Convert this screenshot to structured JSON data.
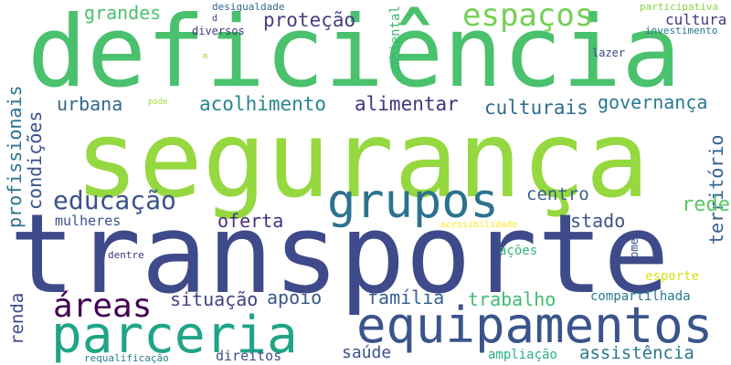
{
  "words": [
    {
      "text": "segurança",
      "color": "#95d840"
    },
    {
      "text": "transporte",
      "color": "#3e4a89"
    },
    {
      "text": "deficiência",
      "color": "#4ac16d"
    },
    {
      "text": "equipamentos",
      "color": "#3a548c"
    },
    {
      "text": "parceria",
      "color": "#20a486"
    },
    {
      "text": "grupos",
      "color": "#2c728e"
    },
    {
      "text": "espaços",
      "color": "#74d055"
    },
    {
      "text": "áreas",
      "color": "#440154"
    },
    {
      "text": "educação",
      "color": "#3b528b"
    },
    {
      "text": "acolhimento",
      "color": "#25858e"
    },
    {
      "text": "proteção",
      "color": "#433e85"
    },
    {
      "text": "alimentar",
      "color": "#46337e"
    },
    {
      "text": "culturais",
      "color": "#2e6e8e"
    },
    {
      "text": "governança",
      "color": "#2a788e"
    },
    {
      "text": "urbana",
      "color": "#31688e"
    },
    {
      "text": "grandes",
      "color": "#4ac16d"
    },
    {
      "text": "profissionais",
      "color": "#2c738e"
    },
    {
      "text": "condições",
      "color": "#3b528b"
    },
    {
      "text": "território",
      "color": "#34618d"
    },
    {
      "text": "oferta",
      "color": "#46327e"
    },
    {
      "text": "centro",
      "color": "#34618d"
    },
    {
      "text": "rede",
      "color": "#5cc863"
    },
    {
      "text": "estado",
      "color": "#3b528b"
    },
    {
      "text": "situação",
      "color": "#424086"
    },
    {
      "text": "apoio",
      "color": "#38588c"
    },
    {
      "text": "família",
      "color": "#355f8d"
    },
    {
      "text": "trabalho",
      "color": "#3fbc73"
    },
    {
      "text": "renda",
      "color": "#3e4989"
    },
    {
      "text": "mulheres",
      "color": "#3b528b"
    },
    {
      "text": "saúde",
      "color": "#3b528b"
    },
    {
      "text": "assistência",
      "color": "#2a788e"
    },
    {
      "text": "compartilhada",
      "color": "#29798e"
    },
    {
      "text": "cultura",
      "color": "#453781"
    },
    {
      "text": "diversos",
      "color": "#453781"
    },
    {
      "text": "ambiental",
      "color": "#3aba76"
    },
    {
      "text": "desigualdade",
      "color": "#31688e"
    },
    {
      "text": "participativa",
      "color": "#86d549"
    },
    {
      "text": "investimento",
      "color": "#29798e"
    },
    {
      "text": "lazer",
      "color": "#414487"
    },
    {
      "text": "d",
      "color": "#46337e"
    },
    {
      "text": "m",
      "color": "#9fda3a"
    },
    {
      "text": "pode",
      "color": "#9fda3a"
    },
    {
      "text": "acessibilidade",
      "color": "#fde725"
    },
    {
      "text": "ações",
      "color": "#32b67a"
    },
    {
      "text": "fome",
      "color": "#3b528b"
    },
    {
      "text": "esporte",
      "color": "#d8e219"
    },
    {
      "text": "dentre",
      "color": "#472f7d"
    },
    {
      "text": "ampliação",
      "color": "#2ab07f"
    },
    {
      "text": "requalificação",
      "color": "#26818e"
    },
    {
      "text": "direitos",
      "color": "#3b528b"
    }
  ]
}
